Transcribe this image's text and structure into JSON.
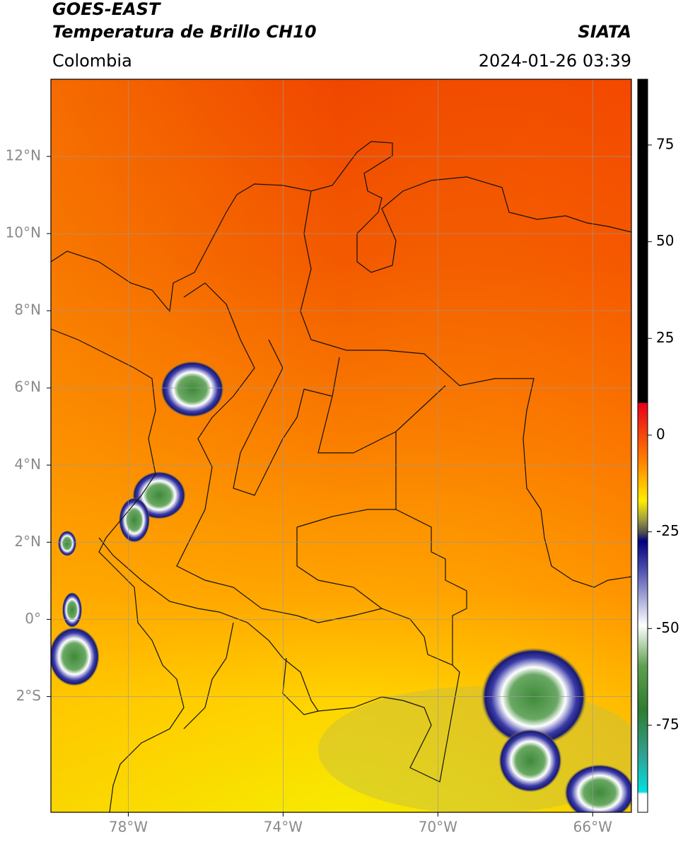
{
  "header": {
    "title_line1": "GOES-EAST",
    "title_line2": "Temperatura de Brillo CH10",
    "source": "SIATA",
    "region": "Colombia",
    "datetime": "2024-01-26 03:39"
  },
  "map": {
    "xlim": [
      -80,
      -65
    ],
    "ylim": [
      -5,
      14
    ],
    "xticks": [
      {
        "value": -78,
        "label": "78°W"
      },
      {
        "value": -74,
        "label": "74°W"
      },
      {
        "value": -70,
        "label": "70°W"
      },
      {
        "value": -66,
        "label": "66°W"
      }
    ],
    "yticks": [
      {
        "value": 12,
        "label": "12°N"
      },
      {
        "value": 10,
        "label": "10°N"
      },
      {
        "value": 8,
        "label": "8°N"
      },
      {
        "value": 6,
        "label": "6°N"
      },
      {
        "value": 4,
        "label": "4°N"
      },
      {
        "value": 2,
        "label": "2°N"
      },
      {
        "value": 0,
        "label": "0°"
      },
      {
        "value": -2,
        "label": "2°S"
      }
    ],
    "grid": true
  },
  "colorbar": {
    "lim": [
      -97.5,
      92
    ],
    "ticks": [
      75,
      50,
      25,
      0,
      -25,
      -50,
      -75
    ]
  }
}
